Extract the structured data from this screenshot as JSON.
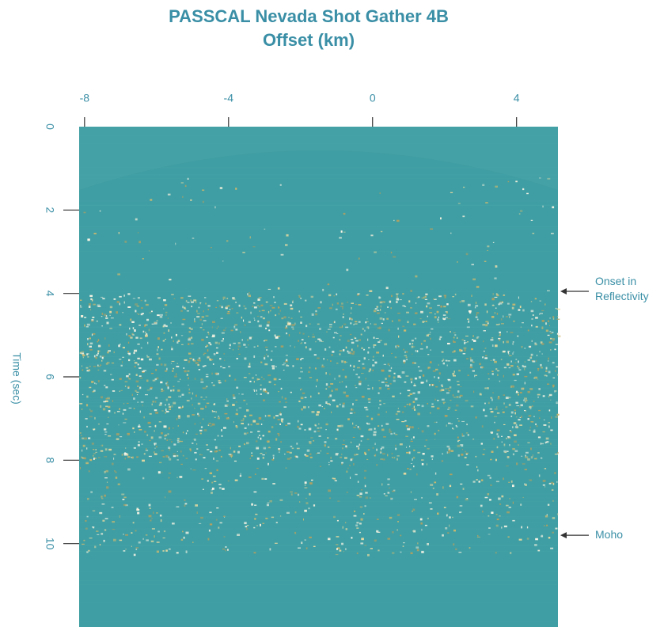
{
  "chart_data": {
    "type": "image",
    "title": "PASSCAL Nevada Shot Gather 4B",
    "x_label": "Offset (km)",
    "y_label": "Time (sec)",
    "xlim": [
      -8.15,
      5.15
    ],
    "xticks": [
      -8,
      -4,
      0,
      4
    ],
    "ylim": [
      0,
      12
    ],
    "yticks": [
      0,
      2,
      4,
      6,
      8,
      10
    ],
    "y_inverted": true,
    "color": "#3f9ea3",
    "annotations": [
      {
        "lines": [
          "Onset in",
          "Reflectivity"
        ],
        "y": 3.95
      },
      {
        "lines": [
          "Moho"
        ],
        "y": 9.8
      }
    ]
  }
}
